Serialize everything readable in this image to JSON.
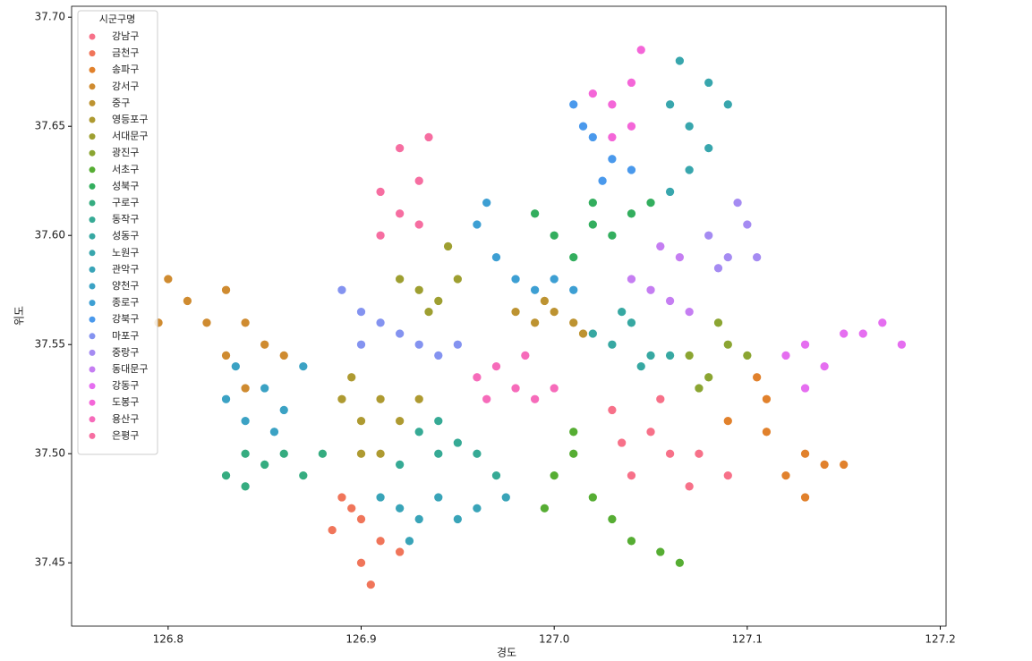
{
  "chart_data": {
    "type": "scatter",
    "x_label": "경도",
    "y_label": "위도",
    "legend_title": "시군구명",
    "legend_position": "upper left",
    "xlim": [
      126.75,
      127.203
    ],
    "ylim": [
      37.421,
      37.705
    ],
    "xticks": [
      126.8,
      126.9,
      {
        "value": 127,
        "label": "127.0"
      },
      127.1,
      127.2
    ],
    "yticks": [
      37.45,
      {
        "value": 37.5,
        "label": "37.50"
      },
      37.55,
      {
        "value": 37.6,
        "label": "37.60"
      },
      37.65,
      {
        "value": 37.7,
        "label": "37.70"
      }
    ],
    "series": [
      {
        "name": "강남구",
        "color": "#f77189",
        "x": [
          127.03,
          127.05,
          127.06,
          127.04,
          127.07,
          127.035,
          127.055,
          127.075,
          127.09
        ],
        "y": [
          37.52,
          37.51,
          37.5,
          37.49,
          37.485,
          37.505,
          37.525,
          37.5,
          37.49
        ]
      },
      {
        "name": "금천구",
        "color": "#f0755a",
        "x": [
          126.89,
          126.9,
          126.91,
          126.9,
          126.92,
          126.885,
          126.905,
          126.895
        ],
        "y": [
          37.48,
          37.47,
          37.46,
          37.45,
          37.455,
          37.465,
          37.44,
          37.475
        ]
      },
      {
        "name": "송파구",
        "color": "#e1812c",
        "x": [
          127.09,
          127.11,
          127.13,
          127.12,
          127.14,
          127.15,
          127.13,
          127.11,
          127.105
        ],
        "y": [
          37.515,
          37.51,
          37.5,
          37.49,
          37.495,
          37.495,
          37.48,
          37.525,
          37.535
        ]
      },
      {
        "name": "강서구",
        "color": "#cf8b30",
        "x": [
          126.81,
          126.82,
          126.8,
          126.84,
          126.85,
          126.83,
          126.86,
          126.795,
          126.84,
          126.83
        ],
        "y": [
          37.57,
          37.56,
          37.58,
          37.56,
          37.55,
          37.545,
          37.545,
          37.56,
          37.53,
          37.575
        ]
      },
      {
        "name": "중구",
        "color": "#bd9331",
        "x": [
          126.98,
          126.99,
          127.0,
          127.01,
          126.995,
          127.015
        ],
        "y": [
          37.565,
          37.56,
          37.565,
          37.56,
          37.57,
          37.555
        ]
      },
      {
        "name": "영등포구",
        "color": "#ae9a31",
        "x": [
          126.89,
          126.9,
          126.91,
          126.9,
          126.92,
          126.895,
          126.93,
          126.91
        ],
        "y": [
          37.525,
          37.515,
          37.525,
          37.5,
          37.515,
          37.535,
          37.525,
          37.5
        ]
      },
      {
        "name": "서대문구",
        "color": "#9e9f31",
        "x": [
          126.93,
          126.94,
          126.95,
          126.92,
          126.945,
          126.935
        ],
        "y": [
          37.575,
          37.57,
          37.58,
          37.58,
          37.595,
          37.565
        ]
      },
      {
        "name": "광진구",
        "color": "#8ba532",
        "x": [
          127.07,
          127.08,
          127.09,
          127.1,
          127.085,
          127.075
        ],
        "y": [
          37.545,
          37.535,
          37.55,
          37.545,
          37.56,
          37.53
        ]
      },
      {
        "name": "서초구",
        "color": "#56ad33",
        "x": [
          127.0,
          127.01,
          127.02,
          127.03,
          127.04,
          127.055,
          127.01,
          126.995,
          127.065
        ],
        "y": [
          37.49,
          37.5,
          37.48,
          37.47,
          37.46,
          37.455,
          37.51,
          37.475,
          37.45
        ]
      },
      {
        "name": "성북구",
        "color": "#33ae5e",
        "x": [
          126.99,
          127.0,
          127.02,
          127.03,
          127.04,
          127.01,
          127.05,
          127.02
        ],
        "y": [
          37.61,
          37.6,
          37.605,
          37.6,
          37.61,
          37.59,
          37.615,
          37.615
        ]
      },
      {
        "name": "구로구",
        "color": "#35ac80",
        "x": [
          126.83,
          126.84,
          126.85,
          126.86,
          126.87,
          126.84,
          126.88
        ],
        "y": [
          37.49,
          37.5,
          37.495,
          37.5,
          37.49,
          37.485,
          37.5
        ]
      },
      {
        "name": "동작구",
        "color": "#36aa95",
        "x": [
          126.93,
          126.94,
          126.95,
          126.96,
          126.97,
          126.92,
          126.94
        ],
        "y": [
          37.51,
          37.5,
          37.505,
          37.5,
          37.49,
          37.495,
          37.515
        ]
      },
      {
        "name": "성동구",
        "color": "#37a8a2",
        "x": [
          127.02,
          127.03,
          127.04,
          127.05,
          127.06,
          127.035,
          127.045
        ],
        "y": [
          37.555,
          37.55,
          37.56,
          37.545,
          37.545,
          37.565,
          37.54
        ]
      },
      {
        "name": "노원구",
        "color": "#38a6ad",
        "x": [
          127.06,
          127.07,
          127.08,
          127.07,
          127.06,
          127.08,
          127.065,
          127.09
        ],
        "y": [
          37.66,
          37.65,
          37.64,
          37.63,
          37.62,
          37.67,
          37.68,
          37.66
        ]
      },
      {
        "name": "관악구",
        "color": "#39a4b8",
        "x": [
          126.91,
          126.92,
          126.93,
          126.94,
          126.95,
          126.96,
          126.975,
          126.925
        ],
        "y": [
          37.48,
          37.475,
          37.47,
          37.48,
          37.47,
          37.475,
          37.48,
          37.46
        ]
      },
      {
        "name": "양천구",
        "color": "#3ba2c4",
        "x": [
          126.83,
          126.84,
          126.85,
          126.86,
          126.87,
          126.835,
          126.855
        ],
        "y": [
          37.525,
          37.515,
          37.53,
          37.52,
          37.54,
          37.54,
          37.51
        ]
      },
      {
        "name": "종로구",
        "color": "#3d9fd3",
        "x": [
          126.96,
          126.97,
          126.98,
          126.99,
          127.0,
          127.01,
          126.965
        ],
        "y": [
          37.605,
          37.59,
          37.58,
          37.575,
          37.58,
          37.575,
          37.615
        ]
      },
      {
        "name": "강북구",
        "color": "#4a99ec",
        "x": [
          127.01,
          127.02,
          127.03,
          127.025,
          127.04,
          127.015
        ],
        "y": [
          37.66,
          37.645,
          37.635,
          37.625,
          37.63,
          37.65
        ]
      },
      {
        "name": "마포구",
        "color": "#8493f0",
        "x": [
          126.89,
          126.9,
          126.91,
          126.92,
          126.93,
          126.94,
          126.95,
          126.9
        ],
        "y": [
          37.575,
          37.565,
          37.56,
          37.555,
          37.55,
          37.545,
          37.55,
          37.55
        ]
      },
      {
        "name": "중랑구",
        "color": "#a58bf2",
        "x": [
          127.08,
          127.09,
          127.1,
          127.095,
          127.085,
          127.105
        ],
        "y": [
          37.6,
          37.59,
          37.605,
          37.615,
          37.585,
          37.59
        ]
      },
      {
        "name": "동대문구",
        "color": "#c57ef2",
        "x": [
          127.04,
          127.05,
          127.06,
          127.065,
          127.055,
          127.07
        ],
        "y": [
          37.58,
          37.575,
          37.57,
          37.59,
          37.595,
          37.565
        ]
      },
      {
        "name": "강동구",
        "color": "#e56ef0",
        "x": [
          127.12,
          127.13,
          127.14,
          127.15,
          127.16,
          127.17,
          127.13,
          127.18
        ],
        "y": [
          37.545,
          37.55,
          37.54,
          37.555,
          37.555,
          37.56,
          37.53,
          37.55
        ]
      },
      {
        "name": "도봉구",
        "color": "#f466d8",
        "x": [
          127.02,
          127.03,
          127.04,
          127.045,
          127.03,
          127.04
        ],
        "y": [
          37.665,
          37.66,
          37.67,
          37.685,
          37.645,
          37.65
        ]
      },
      {
        "name": "용산구",
        "color": "#f66bba",
        "x": [
          126.96,
          126.97,
          126.98,
          126.99,
          127.0,
          126.985,
          126.965
        ],
        "y": [
          37.535,
          37.54,
          37.53,
          37.525,
          37.53,
          37.545,
          37.525
        ]
      },
      {
        "name": "은평구",
        "color": "#f66ea1",
        "x": [
          126.91,
          126.92,
          126.93,
          126.92,
          126.93,
          126.91,
          126.935
        ],
        "y": [
          37.62,
          37.61,
          37.625,
          37.64,
          37.605,
          37.6,
          37.645
        ]
      }
    ]
  }
}
